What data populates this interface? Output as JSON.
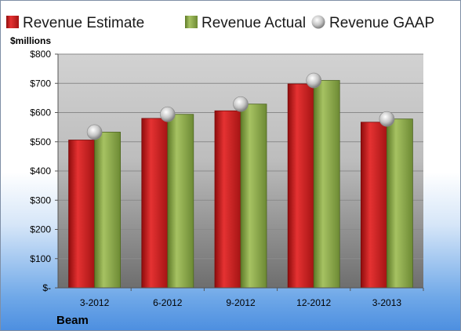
{
  "colors": {
    "estimate": "#cc1f1f",
    "actual": "#8aa64a",
    "gaap": "#c8c8c8",
    "plot_top": "#d0d0d0",
    "plot_bottom": "#7a7a7a"
  },
  "chart_data": {
    "type": "bar",
    "ylabel": "$millions",
    "categories": [
      "3-2012",
      "6-2012",
      "9-2012",
      "12-2012",
      "3-2013"
    ],
    "series": [
      {
        "name": "Revenue Estimate",
        "kind": "bar",
        "values": [
          506,
          580,
          606,
          698,
          567
        ]
      },
      {
        "name": "Revenue Actual",
        "kind": "bar",
        "values": [
          533,
          594,
          629,
          710,
          578
        ]
      },
      {
        "name": "Revenue GAAP",
        "kind": "marker",
        "values": [
          533,
          594,
          629,
          710,
          578
        ]
      }
    ],
    "ylim": [
      0,
      800
    ],
    "yticks": [
      0,
      100,
      200,
      300,
      400,
      500,
      600,
      700,
      800
    ],
    "ytick_labels": [
      "$-",
      "$100",
      "$200",
      "$300",
      "$400",
      "$500",
      "$600",
      "$700",
      "$800"
    ],
    "grid": true,
    "legend_position": "top"
  },
  "footer": {
    "company": "Beam"
  }
}
